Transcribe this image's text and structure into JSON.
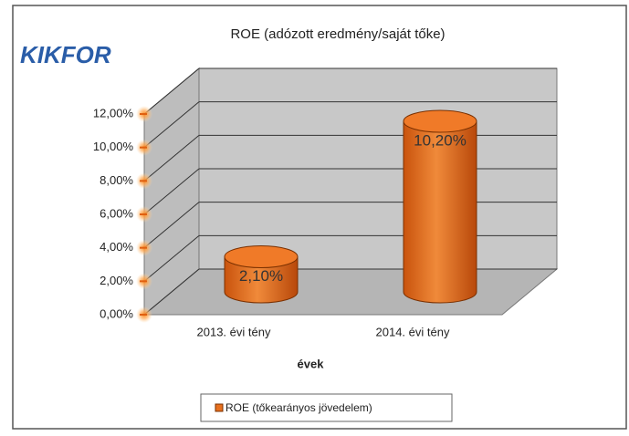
{
  "logo": "KIKFOR",
  "chart_data": {
    "type": "bar",
    "shape": "cylinder",
    "title": "ROE (adózott eredmény/saját tőke)",
    "x_label": "évek",
    "categories": [
      "2013. évi tény",
      "2014. évi tény"
    ],
    "series": [
      {
        "name": "ROE (tőkearányos jövedelem)",
        "color": "#e8701e",
        "values": [
          2.1,
          10.2
        ],
        "value_labels": [
          "2,10%",
          "10,20%"
        ]
      }
    ],
    "ylim": [
      0,
      12
    ],
    "yticks": [
      {
        "value": 0,
        "label": "0,00%"
      },
      {
        "value": 2,
        "label": "2,00%"
      },
      {
        "value": 4,
        "label": "4,00%"
      },
      {
        "value": 6,
        "label": "6,00%"
      },
      {
        "value": 8,
        "label": "8,00%"
      },
      {
        "value": 10,
        "label": "10,00%"
      },
      {
        "value": 12,
        "label": "12,00%"
      }
    ],
    "grid": true,
    "legend": "bottom"
  }
}
